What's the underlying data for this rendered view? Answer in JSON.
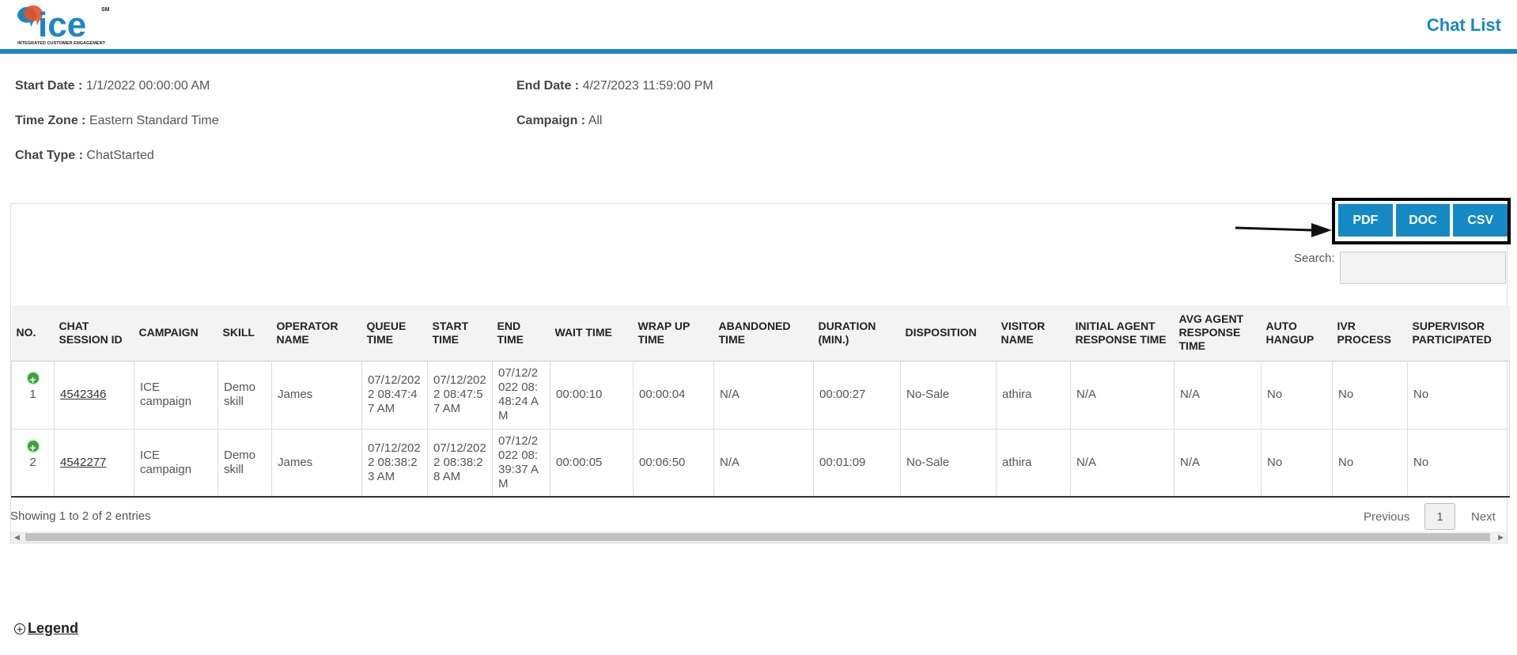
{
  "header": {
    "logo_text": "ice",
    "logo_subtitle": "INTEGRATED CUSTOMER ENGAGEMENT",
    "logo_sm": "SM",
    "title": "Chat List"
  },
  "meta": {
    "start_label": "Start Date :",
    "start_value": "1/1/2022 00:00:00 AM",
    "end_label": "End Date :",
    "end_value": "4/27/2023 11:59:00 PM",
    "tz_label": "Time Zone :",
    "tz_value": "Eastern Standard Time",
    "campaign_label": "Campaign :",
    "campaign_value": "All",
    "type_label": "Chat Type :",
    "type_value": "ChatStarted"
  },
  "export": {
    "pdf": "PDF",
    "doc": "DOC",
    "csv": "CSV"
  },
  "search": {
    "label": "Search:",
    "value": ""
  },
  "table": {
    "headers": [
      "NO.",
      "CHAT SESSION ID",
      "CAMPAIGN",
      "SKILL",
      "OPERATOR NAME",
      "QUEUE TIME",
      "START TIME",
      "END TIME",
      "WAIT TIME",
      "WRAP UP TIME",
      "ABANDONED TIME",
      "DURATION (MIN.)",
      "DISPOSITION",
      "VISITOR NAME",
      "INITIAL AGENT RESPONSE TIME",
      "AVG AGENT RESPONSE TIME",
      "AUTO HANGUP",
      "IVR PROCESS",
      "SUPERVISOR PARTICIPATED"
    ],
    "rows": [
      [
        "1",
        "4542346",
        "ICE campaign",
        "Demo skill",
        "James",
        "07/12/2022 08:47:47 AM",
        "07/12/2022 08:47:57 AM",
        "07/12/2022 08:48:24 AM",
        "00:00:10",
        "00:00:04",
        "N/A",
        "00:00:27",
        "No-Sale",
        "athira",
        "N/A",
        "N/A",
        "No",
        "No",
        "No"
      ],
      [
        "2",
        "4542277",
        "ICE campaign",
        "Demo skill",
        "James",
        "07/12/2022 08:38:23 AM",
        "07/12/2022 08:38:28 AM",
        "07/12/2022 08:39:37 AM",
        "00:00:05",
        "00:06:50",
        "N/A",
        "00:01:09",
        "No-Sale",
        "athira",
        "N/A",
        "N/A",
        "No",
        "No",
        "No"
      ]
    ]
  },
  "footer": {
    "showing": "Showing 1 to 2 of 2 entries",
    "previous": "Previous",
    "page": "1",
    "next": "Next"
  },
  "legend": {
    "label": "Legend"
  },
  "icons": {
    "expand": "plus-circle-icon",
    "legend": "circle-plus-icon",
    "arrow": "arrow-right-icon"
  },
  "colors": {
    "brand": "#1589c4",
    "expand": "#3aa33a"
  }
}
